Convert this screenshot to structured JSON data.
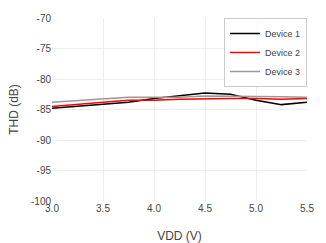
{
  "chart_data": {
    "type": "line",
    "xlabel": "VDD (V)",
    "ylabel": "THD (dB)",
    "x": [
      3.0,
      3.25,
      3.5,
      3.75,
      4.0,
      4.25,
      4.5,
      4.75,
      5.0,
      5.25,
      5.5
    ],
    "series": [
      {
        "name": "Device 1",
        "color": "#000000",
        "values": [
          -84.8,
          -84.5,
          -84.2,
          -83.8,
          -83.2,
          -82.8,
          -82.3,
          -82.5,
          -83.5,
          -84.2,
          -83.8
        ]
      },
      {
        "name": "Device 2",
        "color": "#ff0000",
        "values": [
          -84.5,
          -84.1,
          -83.8,
          -83.5,
          -83.5,
          -83.3,
          -83.2,
          -83.2,
          -83.2,
          -83.3,
          -83.2
        ]
      },
      {
        "name": "Device 3",
        "color": "#999999",
        "values": [
          -83.8,
          -83.5,
          -83.2,
          -83.0,
          -83.0,
          -83.0,
          -82.8,
          -82.8,
          -82.8,
          -82.9,
          -83.0
        ]
      }
    ],
    "xlim": [
      3,
      5.5
    ],
    "ylim": [
      -100,
      -70
    ],
    "xticks": [
      {
        "value": 3,
        "label": "3.0"
      },
      {
        "value": 3.5,
        "label": "3.5"
      },
      {
        "value": 4,
        "label": "4.0"
      },
      {
        "value": 4.5,
        "label": "4.5"
      },
      {
        "value": 5,
        "label": "5.0"
      },
      {
        "value": 5.5,
        "label": "5.5"
      }
    ],
    "yticks": [
      -100,
      -95,
      -90,
      -85,
      -80,
      -75,
      -70
    ],
    "grid": true,
    "legend": "upper right"
  }
}
